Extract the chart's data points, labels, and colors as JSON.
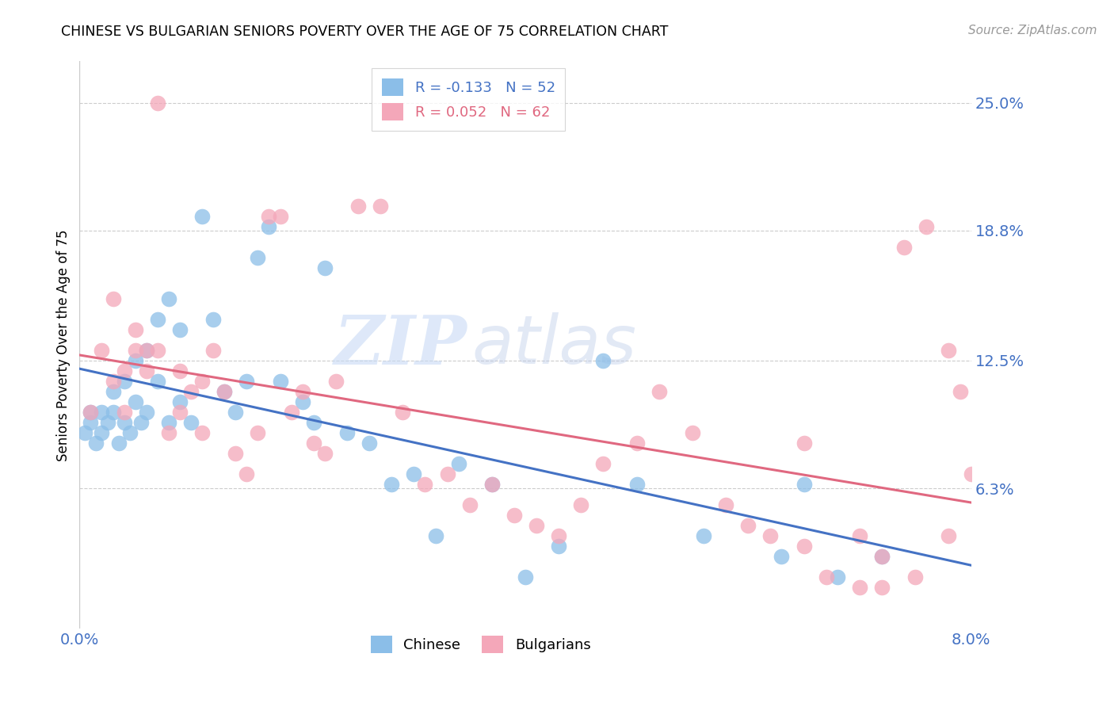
{
  "title": "CHINESE VS BULGARIAN SENIORS POVERTY OVER THE AGE OF 75 CORRELATION CHART",
  "source": "Source: ZipAtlas.com",
  "ylabel": "Seniors Poverty Over the Age of 75",
  "ytick_labels": [
    "6.3%",
    "12.5%",
    "18.8%",
    "25.0%"
  ],
  "ytick_vals": [
    0.063,
    0.125,
    0.188,
    0.25
  ],
  "xlim": [
    0.0,
    0.08
  ],
  "ylim": [
    -0.005,
    0.27
  ],
  "chinese_color": "#8BBEE8",
  "bulgarian_color": "#F4A7B9",
  "chinese_line_color": "#4472C4",
  "bulgarian_line_color": "#E06880",
  "legend_chinese_R": "-0.133",
  "legend_chinese_N": "52",
  "legend_bulgarian_R": "0.052",
  "legend_bulgarian_N": "62",
  "watermark_zip": "ZIP",
  "watermark_atlas": "atlas",
  "chinese_x": [
    0.0005,
    0.001,
    0.0015,
    0.001,
    0.002,
    0.002,
    0.0025,
    0.003,
    0.003,
    0.0035,
    0.004,
    0.004,
    0.0045,
    0.005,
    0.005,
    0.0055,
    0.006,
    0.006,
    0.007,
    0.007,
    0.008,
    0.008,
    0.009,
    0.009,
    0.01,
    0.011,
    0.012,
    0.013,
    0.014,
    0.015,
    0.016,
    0.017,
    0.018,
    0.02,
    0.021,
    0.022,
    0.024,
    0.026,
    0.028,
    0.03,
    0.032,
    0.034,
    0.037,
    0.04,
    0.043,
    0.047,
    0.05,
    0.056,
    0.063,
    0.065,
    0.068,
    0.072
  ],
  "chinese_y": [
    0.09,
    0.1,
    0.085,
    0.095,
    0.1,
    0.09,
    0.095,
    0.11,
    0.1,
    0.085,
    0.115,
    0.095,
    0.09,
    0.125,
    0.105,
    0.095,
    0.13,
    0.1,
    0.145,
    0.115,
    0.155,
    0.095,
    0.14,
    0.105,
    0.095,
    0.195,
    0.145,
    0.11,
    0.1,
    0.115,
    0.175,
    0.19,
    0.115,
    0.105,
    0.095,
    0.17,
    0.09,
    0.085,
    0.065,
    0.07,
    0.04,
    0.075,
    0.065,
    0.02,
    0.035,
    0.125,
    0.065,
    0.04,
    0.03,
    0.065,
    0.02,
    0.03
  ],
  "bulgarian_x": [
    0.001,
    0.002,
    0.003,
    0.003,
    0.004,
    0.004,
    0.005,
    0.005,
    0.006,
    0.006,
    0.007,
    0.007,
    0.008,
    0.009,
    0.009,
    0.01,
    0.011,
    0.011,
    0.012,
    0.013,
    0.014,
    0.015,
    0.016,
    0.017,
    0.018,
    0.019,
    0.02,
    0.021,
    0.022,
    0.023,
    0.025,
    0.027,
    0.029,
    0.031,
    0.033,
    0.035,
    0.037,
    0.039,
    0.041,
    0.043,
    0.045,
    0.047,
    0.05,
    0.052,
    0.055,
    0.058,
    0.06,
    0.062,
    0.065,
    0.067,
    0.07,
    0.072,
    0.074,
    0.076,
    0.078,
    0.079,
    0.08,
    0.065,
    0.07,
    0.072,
    0.075,
    0.078
  ],
  "bulgarian_y": [
    0.1,
    0.13,
    0.155,
    0.115,
    0.12,
    0.1,
    0.14,
    0.13,
    0.12,
    0.13,
    0.25,
    0.13,
    0.09,
    0.12,
    0.1,
    0.11,
    0.115,
    0.09,
    0.13,
    0.11,
    0.08,
    0.07,
    0.09,
    0.195,
    0.195,
    0.1,
    0.11,
    0.085,
    0.08,
    0.115,
    0.2,
    0.2,
    0.1,
    0.065,
    0.07,
    0.055,
    0.065,
    0.05,
    0.045,
    0.04,
    0.055,
    0.075,
    0.085,
    0.11,
    0.09,
    0.055,
    0.045,
    0.04,
    0.035,
    0.02,
    0.015,
    0.03,
    0.18,
    0.19,
    0.13,
    0.11,
    0.07,
    0.085,
    0.04,
    0.015,
    0.02,
    0.04
  ]
}
